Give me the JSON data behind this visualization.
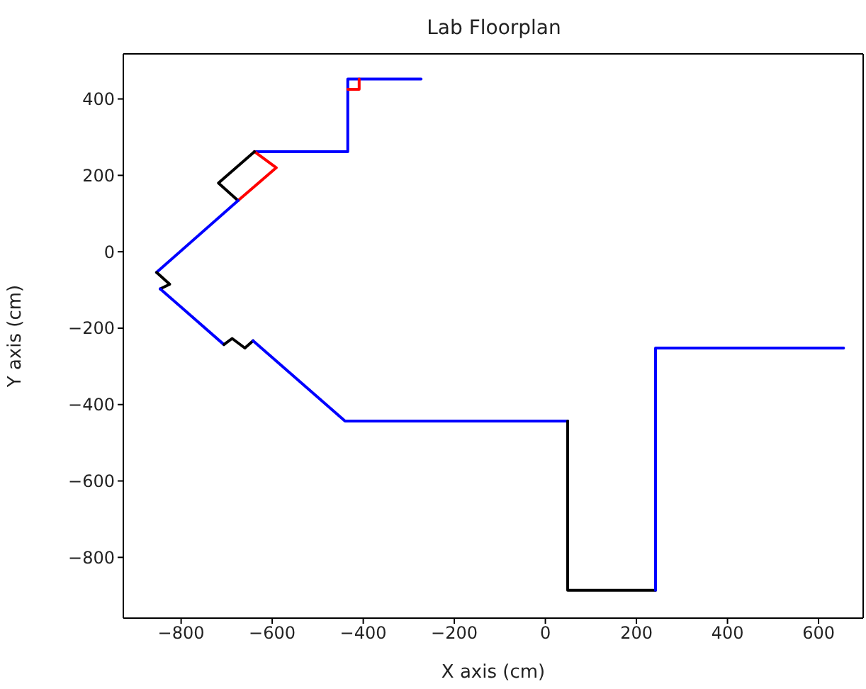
{
  "chart_data": {
    "type": "line",
    "title": "Lab Floorplan",
    "xlabel": "X axis (cm)",
    "ylabel": "Y axis (cm)",
    "xlim": [
      -927,
      698
    ],
    "ylim": [
      -959,
      518
    ],
    "xticks": [
      -800,
      -600,
      -400,
      -200,
      0,
      200,
      400,
      600
    ],
    "yticks": [
      -800,
      -600,
      -400,
      -200,
      0,
      200,
      400
    ],
    "marker": "none",
    "line_style": "solid",
    "series": [
      {
        "color": "#0000ff",
        "x": [
          -273,
          -434,
          -434,
          -639
        ],
        "values": [
          452,
          452,
          262,
          262
        ]
      },
      {
        "color": "#ff0000",
        "x": [
          -434,
          -409,
          -409
        ],
        "values": [
          425,
          425,
          452
        ]
      },
      {
        "color": "#ff0000",
        "x": [
          -639,
          -591,
          -675
        ],
        "values": [
          262,
          220,
          134
        ]
      },
      {
        "color": "#000000",
        "x": [
          -639,
          -718,
          -675
        ],
        "values": [
          262,
          180,
          134
        ]
      },
      {
        "color": "#0000ff",
        "x": [
          -675,
          -854
        ],
        "values": [
          134,
          -54
        ]
      },
      {
        "color": "#000000",
        "x": [
          -854,
          -825,
          -846
        ],
        "values": [
          -54,
          -85,
          -97
        ]
      },
      {
        "color": "#0000ff",
        "x": [
          -846,
          -706
        ],
        "values": [
          -97,
          -243
        ]
      },
      {
        "color": "#000000",
        "x": [
          -706,
          -688,
          -660,
          -642
        ],
        "values": [
          -243,
          -227,
          -252,
          -233
        ]
      },
      {
        "color": "#0000ff",
        "x": [
          -642,
          -440,
          49
        ],
        "values": [
          -233,
          -443,
          -443
        ]
      },
      {
        "color": "#000000",
        "x": [
          49,
          49,
          242
        ],
        "values": [
          -443,
          -886,
          -886
        ]
      },
      {
        "color": "#0000ff",
        "x": [
          242,
          242,
          655
        ],
        "values": [
          -886,
          -252,
          -252
        ]
      }
    ]
  }
}
